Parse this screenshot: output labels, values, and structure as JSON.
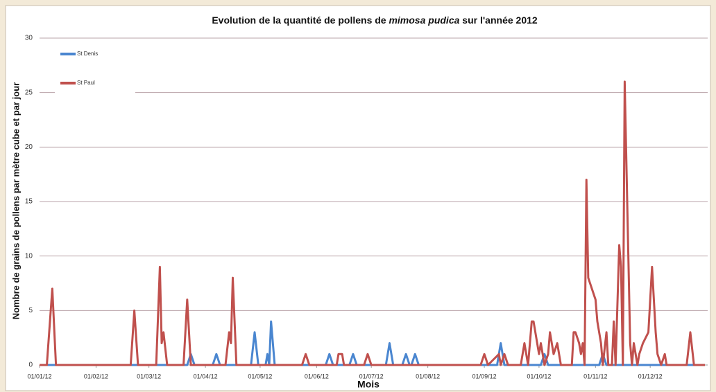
{
  "chart_data": {
    "type": "line",
    "title": [
      "Evolution de la quantité de pollens de ",
      "mimosa pudica",
      " sur l'année 2012"
    ],
    "xlabel": "Mois",
    "ylabel": "Nombre de grains de pollens par mètre cube et par jour",
    "xlim": [
      "01/01/12",
      "31/12/12"
    ],
    "xticks": [
      "01/01/12",
      "01/02/12",
      "01/03/12",
      "01/04/12",
      "01/05/12",
      "01/06/12",
      "01/07/12",
      "01/08/12",
      "01/09/12",
      "01/10/12",
      "01/11/12",
      "01/12/12"
    ],
    "ylim": [
      0,
      30
    ],
    "yticks": [
      0,
      5,
      10,
      15,
      20,
      25,
      30
    ],
    "grid": true,
    "legend": "upper left",
    "series": [
      {
        "name": "St Denis",
        "color": "#4a86d0",
        "x": [
          "01/01/12",
          "22/03/12",
          "24/03/12",
          "26/03/12",
          "05/04/12",
          "07/04/12",
          "09/04/12",
          "26/04/12",
          "28/04/12",
          "30/04/12",
          "04/05/12",
          "05/05/12",
          "06/05/12",
          "07/05/12",
          "09/05/12",
          "06/06/12",
          "08/06/12",
          "10/06/12",
          "19/06/12",
          "21/06/12",
          "23/06/12",
          "09/07/12",
          "11/07/12",
          "13/07/12",
          "18/07/12",
          "20/07/12",
          "22/07/12",
          "23/07/12",
          "25/07/12",
          "27/07/12",
          "08/09/12",
          "10/09/12",
          "12/09/12",
          "02/10/12",
          "04/10/12",
          "06/10/12",
          "03/11/12",
          "05/11/12",
          "07/11/12",
          "31/12/12"
        ],
        "values": [
          0,
          0,
          1,
          0,
          0,
          1,
          0,
          0,
          3,
          0,
          0,
          1,
          0,
          4,
          0,
          0,
          1,
          0,
          0,
          1,
          0,
          0,
          2,
          0,
          0,
          1,
          0,
          0,
          1,
          0,
          0,
          2,
          0,
          0,
          1,
          0,
          0,
          1,
          0,
          0
        ]
      },
      {
        "name": "St Paul",
        "color": "#c0504d",
        "x": [
          "01/01/12",
          "05/01/12",
          "08/01/12",
          "10/01/12",
          "20/02/12",
          "22/02/12",
          "24/02/12",
          "05/03/12",
          "07/03/12",
          "08/03/12",
          "09/03/12",
          "11/03/12",
          "20/03/12",
          "22/03/12",
          "24/03/12",
          "12/04/12",
          "14/04/12",
          "15/04/12",
          "16/04/12",
          "18/04/12",
          "24/05/12",
          "26/05/12",
          "28/05/12",
          "12/06/12",
          "13/06/12",
          "15/06/12",
          "16/06/12",
          "27/06/12",
          "29/06/12",
          "01/07/12",
          "30/08/12",
          "01/09/12",
          "03/09/12",
          "09/09/12",
          "10/09/12",
          "12/09/12",
          "14/09/12",
          "21/09/12",
          "23/09/12",
          "25/09/12",
          "27/09/12",
          "28/09/12",
          "01/10/12",
          "02/10/12",
          "04/10/12",
          "06/10/12",
          "07/10/12",
          "09/10/12",
          "11/10/12",
          "13/10/12",
          "19/10/12",
          "20/10/12",
          "21/10/12",
          "23/10/12",
          "24/10/12",
          "25/10/12",
          "26/10/12",
          "27/10/12",
          "28/10/12",
          "01/11/12",
          "02/11/12",
          "04/11/12",
          "05/11/12",
          "07/11/12",
          "08/11/12",
          "10/11/12",
          "11/11/12",
          "12/11/12",
          "14/11/12",
          "15/11/12",
          "16/11/12",
          "17/11/12",
          "20/11/12",
          "21/11/12",
          "22/11/12",
          "24/11/12",
          "25/11/12",
          "27/11/12",
          "30/11/12",
          "02/12/12",
          "04/12/12",
          "05/12/12",
          "07/12/12",
          "09/12/12",
          "10/12/12",
          "21/12/12",
          "23/12/12",
          "25/12/12",
          "31/12/12"
        ],
        "values": [
          0,
          0,
          7,
          0,
          0,
          5,
          0,
          0,
          9,
          2,
          3,
          0,
          0,
          6,
          0,
          0,
          3,
          2,
          8,
          0,
          0,
          1,
          0,
          0,
          1,
          1,
          0,
          0,
          1,
          0,
          0,
          1,
          0,
          1,
          0,
          1,
          0,
          0,
          2,
          0,
          4,
          4,
          1,
          2,
          0,
          1,
          3,
          1,
          2,
          0,
          0,
          3,
          3,
          2,
          1,
          2,
          0,
          17,
          8,
          6,
          4,
          2,
          0,
          3,
          0,
          0,
          4,
          0,
          11,
          9,
          0,
          26,
          2,
          0,
          2,
          0,
          1,
          2,
          3,
          9,
          3,
          1,
          0,
          1,
          0,
          0,
          3,
          0,
          0
        ]
      }
    ]
  }
}
